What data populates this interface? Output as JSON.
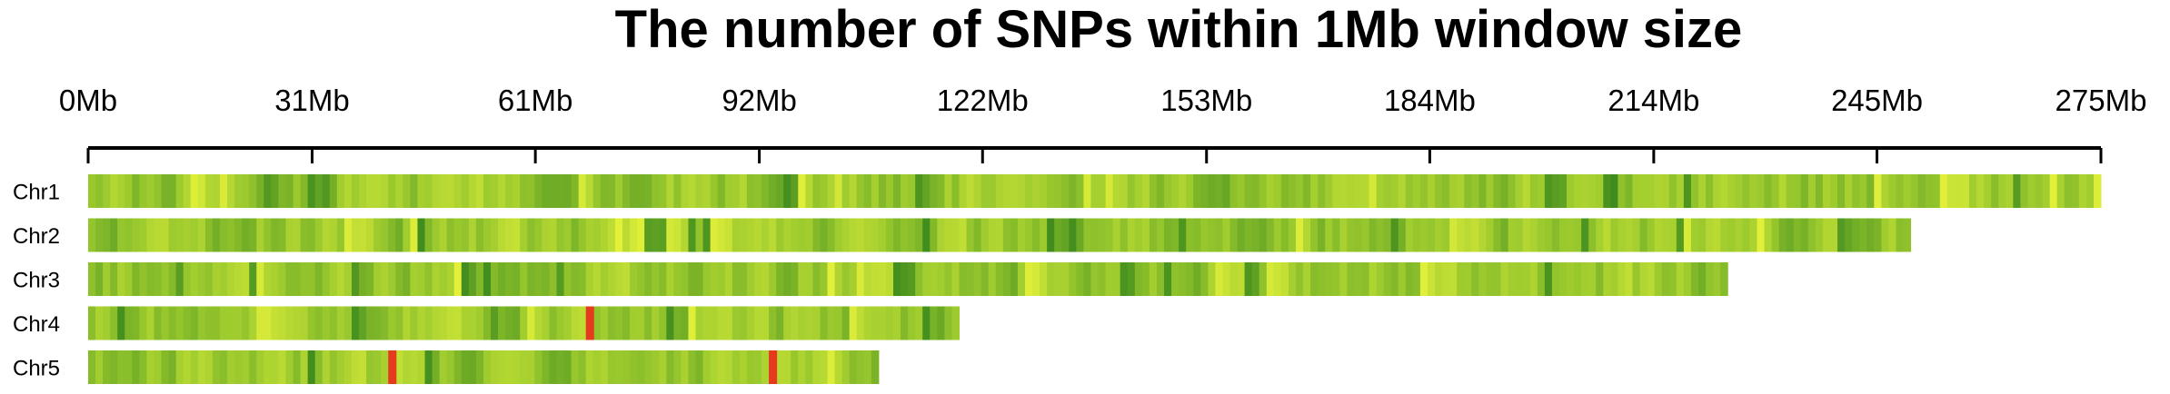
{
  "chart_data": {
    "type": "heatmap",
    "title": "The number of SNPs within 1Mb window size",
    "x_tick_labels": [
      "0Mb",
      "31Mb",
      "61Mb",
      "92Mb",
      "122Mb",
      "153Mb",
      "184Mb",
      "214Mb",
      "245Mb",
      "275Mb"
    ],
    "x_ticks": [
      0,
      30.6,
      61.1,
      91.7,
      122.2,
      152.8,
      183.3,
      213.9,
      244.4,
      275
    ],
    "xlim": [
      0,
      275
    ],
    "window_size_mb": 1,
    "color_scale": {
      "low": "#e2f03a",
      "mid": "#9cca2e",
      "high": "#3d8a1d",
      "hotspot": "#e63a1e"
    },
    "chromosomes": [
      {
        "name": "Chr1",
        "length_mb": 275
      },
      {
        "name": "Chr2",
        "length_mb": 249
      },
      {
        "name": "Chr3",
        "length_mb": 224
      },
      {
        "name": "Chr4",
        "length_mb": 119
      },
      {
        "name": "Chr5",
        "length_mb": 108
      }
    ],
    "hotspots": [
      {
        "chromosome": "Chr4",
        "position_mb": 68,
        "level": "very high"
      },
      {
        "chromosome": "Chr5",
        "position_mb": 41,
        "level": "very high"
      },
      {
        "chromosome": "Chr5",
        "position_mb": 93,
        "level": "very high"
      }
    ]
  }
}
